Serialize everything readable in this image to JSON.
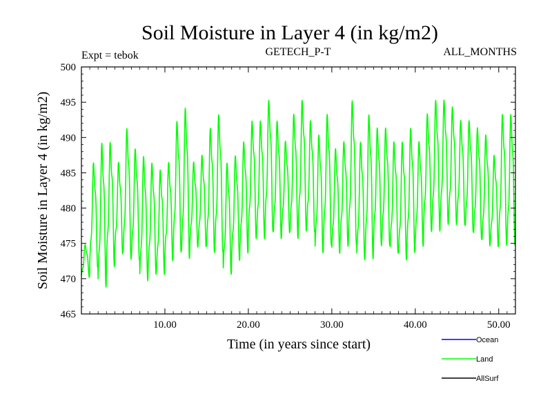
{
  "chart_data": {
    "type": "line",
    "title": "Soil Moisture in Layer 4 (in kg/m2)",
    "subtitle_left": "Expt = tebok",
    "subtitle_center": "GETECH_P-T",
    "subtitle_right": "ALL_MONTHS",
    "xlabel": "Time (in years since start)",
    "ylabel": "Soil Moisture in Layer 4 (in kg/m2)",
    "xlim": [
      0,
      52
    ],
    "ylim": [
      465,
      500
    ],
    "xticks": [
      10,
      20,
      30,
      40,
      50
    ],
    "xtick_labels": [
      "10.00",
      "20.00",
      "30.00",
      "40.00",
      "50.00"
    ],
    "yticks": [
      465,
      470,
      475,
      480,
      485,
      490,
      495,
      500
    ],
    "ytick_labels": [
      "465",
      "470",
      "475",
      "480",
      "485",
      "490",
      "495",
      "500"
    ],
    "series": [
      {
        "name": "Land",
        "color": "#00ff00",
        "seasonal_cycle": {
          "period_years": 1,
          "year_start": 0,
          "years": [
            0,
            1,
            2,
            3,
            4,
            5,
            6,
            7,
            8,
            9,
            10,
            11,
            12,
            13,
            14,
            15,
            16,
            17,
            18,
            19,
            20,
            21,
            22,
            23,
            24,
            25,
            26,
            27,
            28,
            29,
            30,
            31,
            32,
            33,
            34,
            35,
            36,
            37,
            38,
            39,
            40,
            41,
            42,
            43,
            44,
            45,
            46,
            47,
            48,
            49,
            50,
            51
          ],
          "annual_max": [
            475,
            487,
            490,
            490,
            487,
            492,
            489,
            488,
            487,
            486,
            487,
            493,
            495,
            487,
            488,
            492,
            494,
            487,
            488,
            490,
            493,
            493,
            496,
            493,
            490,
            494,
            496,
            493,
            491,
            494,
            489,
            490,
            496,
            490,
            494,
            492,
            492,
            490,
            490,
            492,
            490,
            494,
            496,
            496,
            495,
            493,
            493,
            492,
            491,
            488,
            494,
            494
          ],
          "annual_min": [
            470,
            471,
            468,
            471,
            473,
            472,
            472,
            469,
            470,
            470,
            472,
            473,
            472,
            474,
            474,
            473,
            473,
            470,
            472,
            473,
            475,
            475,
            476,
            475,
            476,
            475,
            476,
            476,
            473,
            474,
            473,
            474,
            474,
            472,
            472,
            474,
            474,
            473,
            472,
            473,
            474,
            476,
            476,
            477,
            477,
            477,
            476,
            475,
            474,
            474,
            474,
            474
          ]
        }
      },
      {
        "name": "Ocean",
        "color": "#0000ff",
        "values": []
      },
      {
        "name": "AllSurf",
        "color": "#000000",
        "values": []
      }
    ],
    "legend": {
      "position": "bottom-right",
      "entries": [
        {
          "label": "Ocean",
          "color": "#0000ff"
        },
        {
          "label": "Land",
          "color": "#00ff00"
        },
        {
          "label": "AllSurf",
          "color": "#000000"
        }
      ]
    }
  }
}
